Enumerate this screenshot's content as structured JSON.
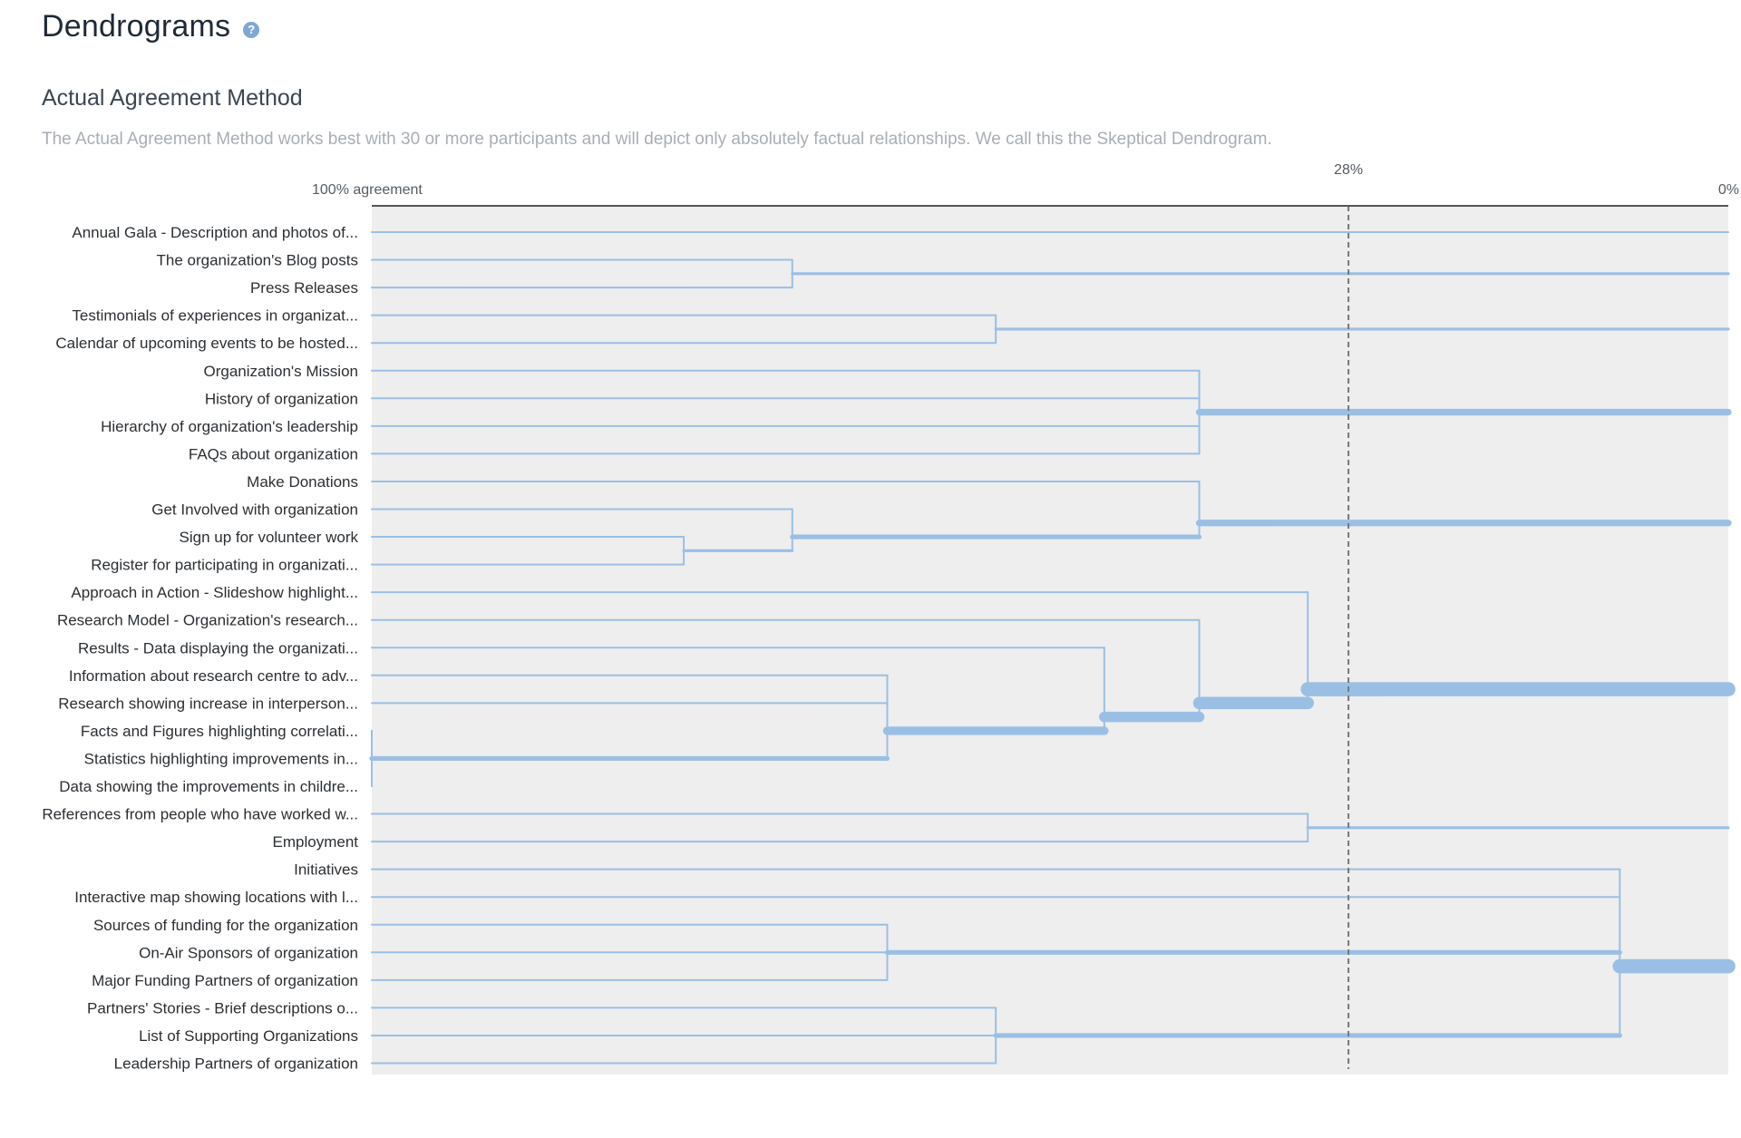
{
  "page": {
    "title": "Dendrograms",
    "help_icon": "question-circle-icon",
    "section_title": "Actual Agreement Method",
    "description": "The Actual Agreement Method works best with 30 or more participants and will depict only absolutely factual relationships. We call this the Skeptical Dendrogram."
  },
  "colors": {
    "branch": "#9bbfe4",
    "plot_background": "#eeeeee",
    "axis": "#555555",
    "threshold_line": "#777777"
  },
  "chart_data": {
    "type": "dendrogram",
    "axis_left_label": "100% agreement",
    "axis_right_label": "0%",
    "axis_range": [
      100,
      0
    ],
    "threshold": 28,
    "threshold_label": "28%",
    "leaves": [
      "Annual Gala - Description and photos of...",
      "The organization's Blog posts",
      "Press Releases",
      "Testimonials of experiences in organizat...",
      "Calendar of upcoming events to be hosted...",
      "Organization's Mission",
      "History of organization",
      "Hierarchy of organization's leadership",
      "FAQs about organization",
      "Make Donations",
      "Get Involved with organization",
      "Sign up for volunteer work",
      "Register for participating in organizati...",
      "Approach in Action - Slideshow highlight...",
      "Research Model - Organization's research...",
      "Results - Data displaying the organizati...",
      "Information about research centre to adv...",
      "Research showing increase in interperson...",
      "Facts and Figures highlighting correlati...",
      "Statistics highlighting improvements in...",
      "Data showing the improvements in childre...",
      "References from people who have worked w...",
      "Employment",
      "Initiatives",
      "Interactive map showing locations with l...",
      "Sources of funding for the organization",
      "On-Air Sponsors of organization",
      "Major Funding Partners of organization",
      "Partners' Stories - Brief descriptions o...",
      "List of Supporting Organizations",
      "Leadership Partners of organization"
    ],
    "merges": [
      {
        "children": [
          18,
          19,
          20
        ],
        "agreement": 100
      },
      {
        "children": [
          11,
          12
        ],
        "agreement": 77
      },
      {
        "children": [
          1,
          2
        ],
        "agreement": 69
      },
      {
        "children": [
          10,
          "m1"
        ],
        "agreement": 69
      },
      {
        "children": [
          16,
          17,
          "m0"
        ],
        "agreement": 62
      },
      {
        "children": [
          25,
          26,
          27
        ],
        "agreement": 62
      },
      {
        "children": [
          3,
          4
        ],
        "agreement": 54
      },
      {
        "children": [
          28,
          29,
          30
        ],
        "agreement": 54
      },
      {
        "children": [
          15,
          "m4"
        ],
        "agreement": 46
      },
      {
        "children": [
          5,
          6,
          7,
          8
        ],
        "agreement": 39
      },
      {
        "children": [
          9,
          "m3"
        ],
        "agreement": 39
      },
      {
        "children": [
          14,
          "m8"
        ],
        "agreement": 39
      },
      {
        "children": [
          13,
          "m11"
        ],
        "agreement": 31
      },
      {
        "children": [
          21,
          22
        ],
        "agreement": 31
      },
      {
        "children": [
          23,
          24,
          "m5",
          "m7"
        ],
        "agreement": 8
      }
    ]
  }
}
